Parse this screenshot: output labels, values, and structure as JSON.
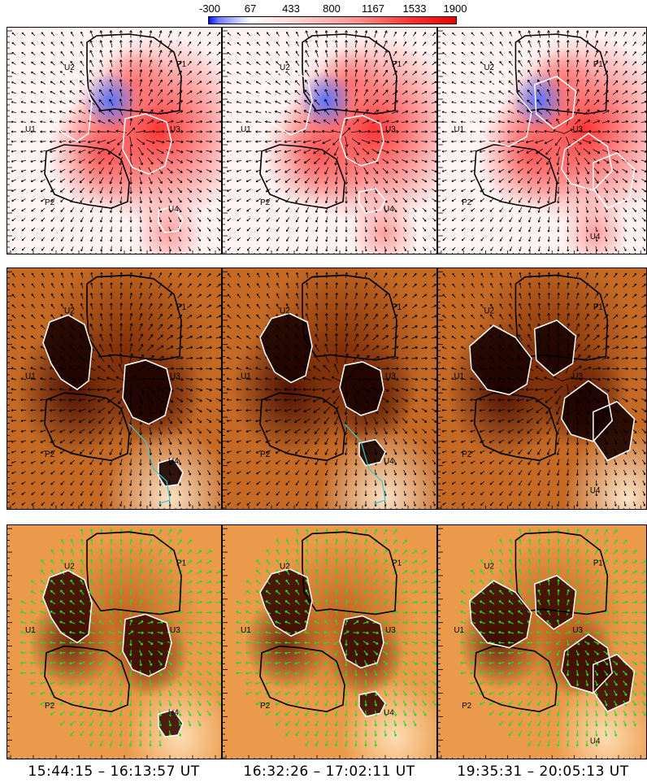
{
  "colorbar": {
    "tick_labels": [
      "-300",
      "67",
      "433",
      "800",
      "1167",
      "1533",
      "1900"
    ],
    "range": [
      -300,
      1900
    ],
    "colors": [
      "#0015ff",
      "#ffffff",
      "#ff0000"
    ]
  },
  "rows": [
    {
      "name": "magnetogram-row",
      "background": "map-blue-white-red",
      "arrow_color": "#000000"
    },
    {
      "name": "intensity-dark-row",
      "background": "map-dark-orange",
      "arrow_color": "#000000"
    },
    {
      "name": "intensity-light-row",
      "background": "map-light-orange",
      "arrow_color": "#22dd22"
    }
  ],
  "region_labels": [
    "P1",
    "U2",
    "U1",
    "U3",
    "U4",
    "P2"
  ],
  "time_ranges": [
    "15:44:15 – 16:13:57 UT",
    "16:32:26 – 17:02:11 UT",
    "19:35:31 – 20:05:13 UT"
  ],
  "contour_colors": {
    "boundary": "#000000",
    "umbra": "#ffffff",
    "highlight": "#33cccc"
  }
}
